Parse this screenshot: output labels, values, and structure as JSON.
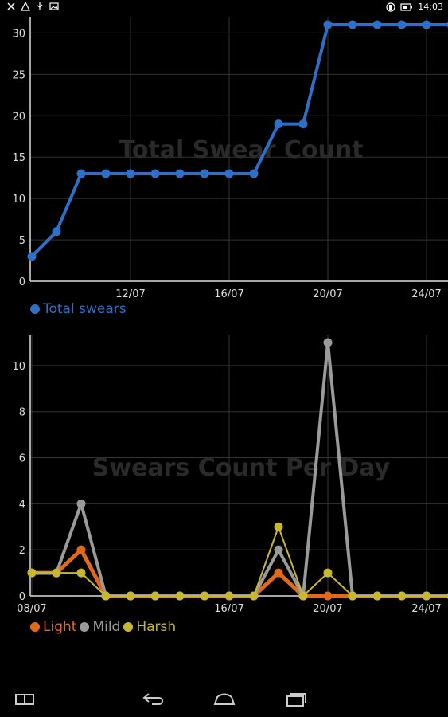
{
  "statusbar": {
    "time": "14:03",
    "left_icons": [
      "close-icon",
      "warning-icon",
      "usb-icon",
      "image-icon"
    ],
    "right_icons": [
      "vibrate-icon",
      "battery-icon"
    ]
  },
  "charts": [
    {
      "id": "total",
      "title": "Total Swear Count",
      "legend": [
        {
          "name": "Total swears",
          "color": "#2e6fc7"
        }
      ]
    },
    {
      "id": "perday",
      "title": "Swears Count Per Day",
      "legend": [
        {
          "name": "Light",
          "color": "#e06a1a"
        },
        {
          "name": "Mild",
          "color": "#9a9a9a"
        },
        {
          "name": "Harsh",
          "color": "#c8b830"
        }
      ]
    }
  ],
  "chart_data": [
    {
      "type": "line",
      "title": "Total Swear Count",
      "x": [
        "08/07",
        "09/07",
        "10/07",
        "11/07",
        "12/07",
        "13/07",
        "14/07",
        "15/07",
        "16/07",
        "17/07",
        "18/07",
        "19/07",
        "20/07",
        "21/07",
        "22/07",
        "23/07",
        "24/07",
        "25/07"
      ],
      "x_ticks": [
        "12/07",
        "16/07",
        "20/07",
        "24/07"
      ],
      "y_ticks": [
        0,
        5,
        10,
        15,
        20,
        25,
        30
      ],
      "ylim": [
        0,
        31
      ],
      "grid": true,
      "legend_position": "bottom-left",
      "series": [
        {
          "name": "Total swears",
          "color": "#2e6fc7",
          "values": [
            3,
            6,
            13,
            13,
            13,
            13,
            13,
            13,
            13,
            13,
            19,
            19,
            31,
            31,
            31,
            31,
            31,
            31
          ]
        }
      ]
    },
    {
      "type": "line",
      "title": "Swears Count Per Day",
      "x": [
        "08/07",
        "09/07",
        "10/07",
        "11/07",
        "12/07",
        "13/07",
        "14/07",
        "15/07",
        "16/07",
        "17/07",
        "18/07",
        "19/07",
        "20/07",
        "21/07",
        "22/07",
        "23/07",
        "24/07",
        "25/07"
      ],
      "x_ticks": [
        "08/07",
        "16/07",
        "20/07",
        "24/07"
      ],
      "y_ticks": [
        0,
        2,
        4,
        6,
        8,
        10
      ],
      "ylim": [
        0,
        11
      ],
      "grid": true,
      "legend_position": "bottom-left",
      "series": [
        {
          "name": "Light",
          "color": "#e06a1a",
          "values": [
            1,
            1,
            2,
            0,
            0,
            0,
            0,
            0,
            0,
            0,
            1,
            0,
            0,
            0,
            0,
            0,
            0,
            0
          ]
        },
        {
          "name": "Mild",
          "color": "#9a9a9a",
          "values": [
            1,
            1,
            4,
            0,
            0,
            0,
            0,
            0,
            0,
            0,
            2,
            0,
            11,
            0,
            0,
            0,
            0,
            0
          ]
        },
        {
          "name": "Harsh",
          "color": "#c8b830",
          "values": [
            1,
            1,
            1,
            0,
            0,
            0,
            0,
            0,
            0,
            0,
            3,
            0,
            1,
            0,
            0,
            0,
            0,
            0
          ]
        }
      ]
    }
  ],
  "navbar": {
    "buttons": [
      "screenshot-icon",
      "back-icon",
      "home-icon",
      "recent-apps-icon"
    ]
  }
}
